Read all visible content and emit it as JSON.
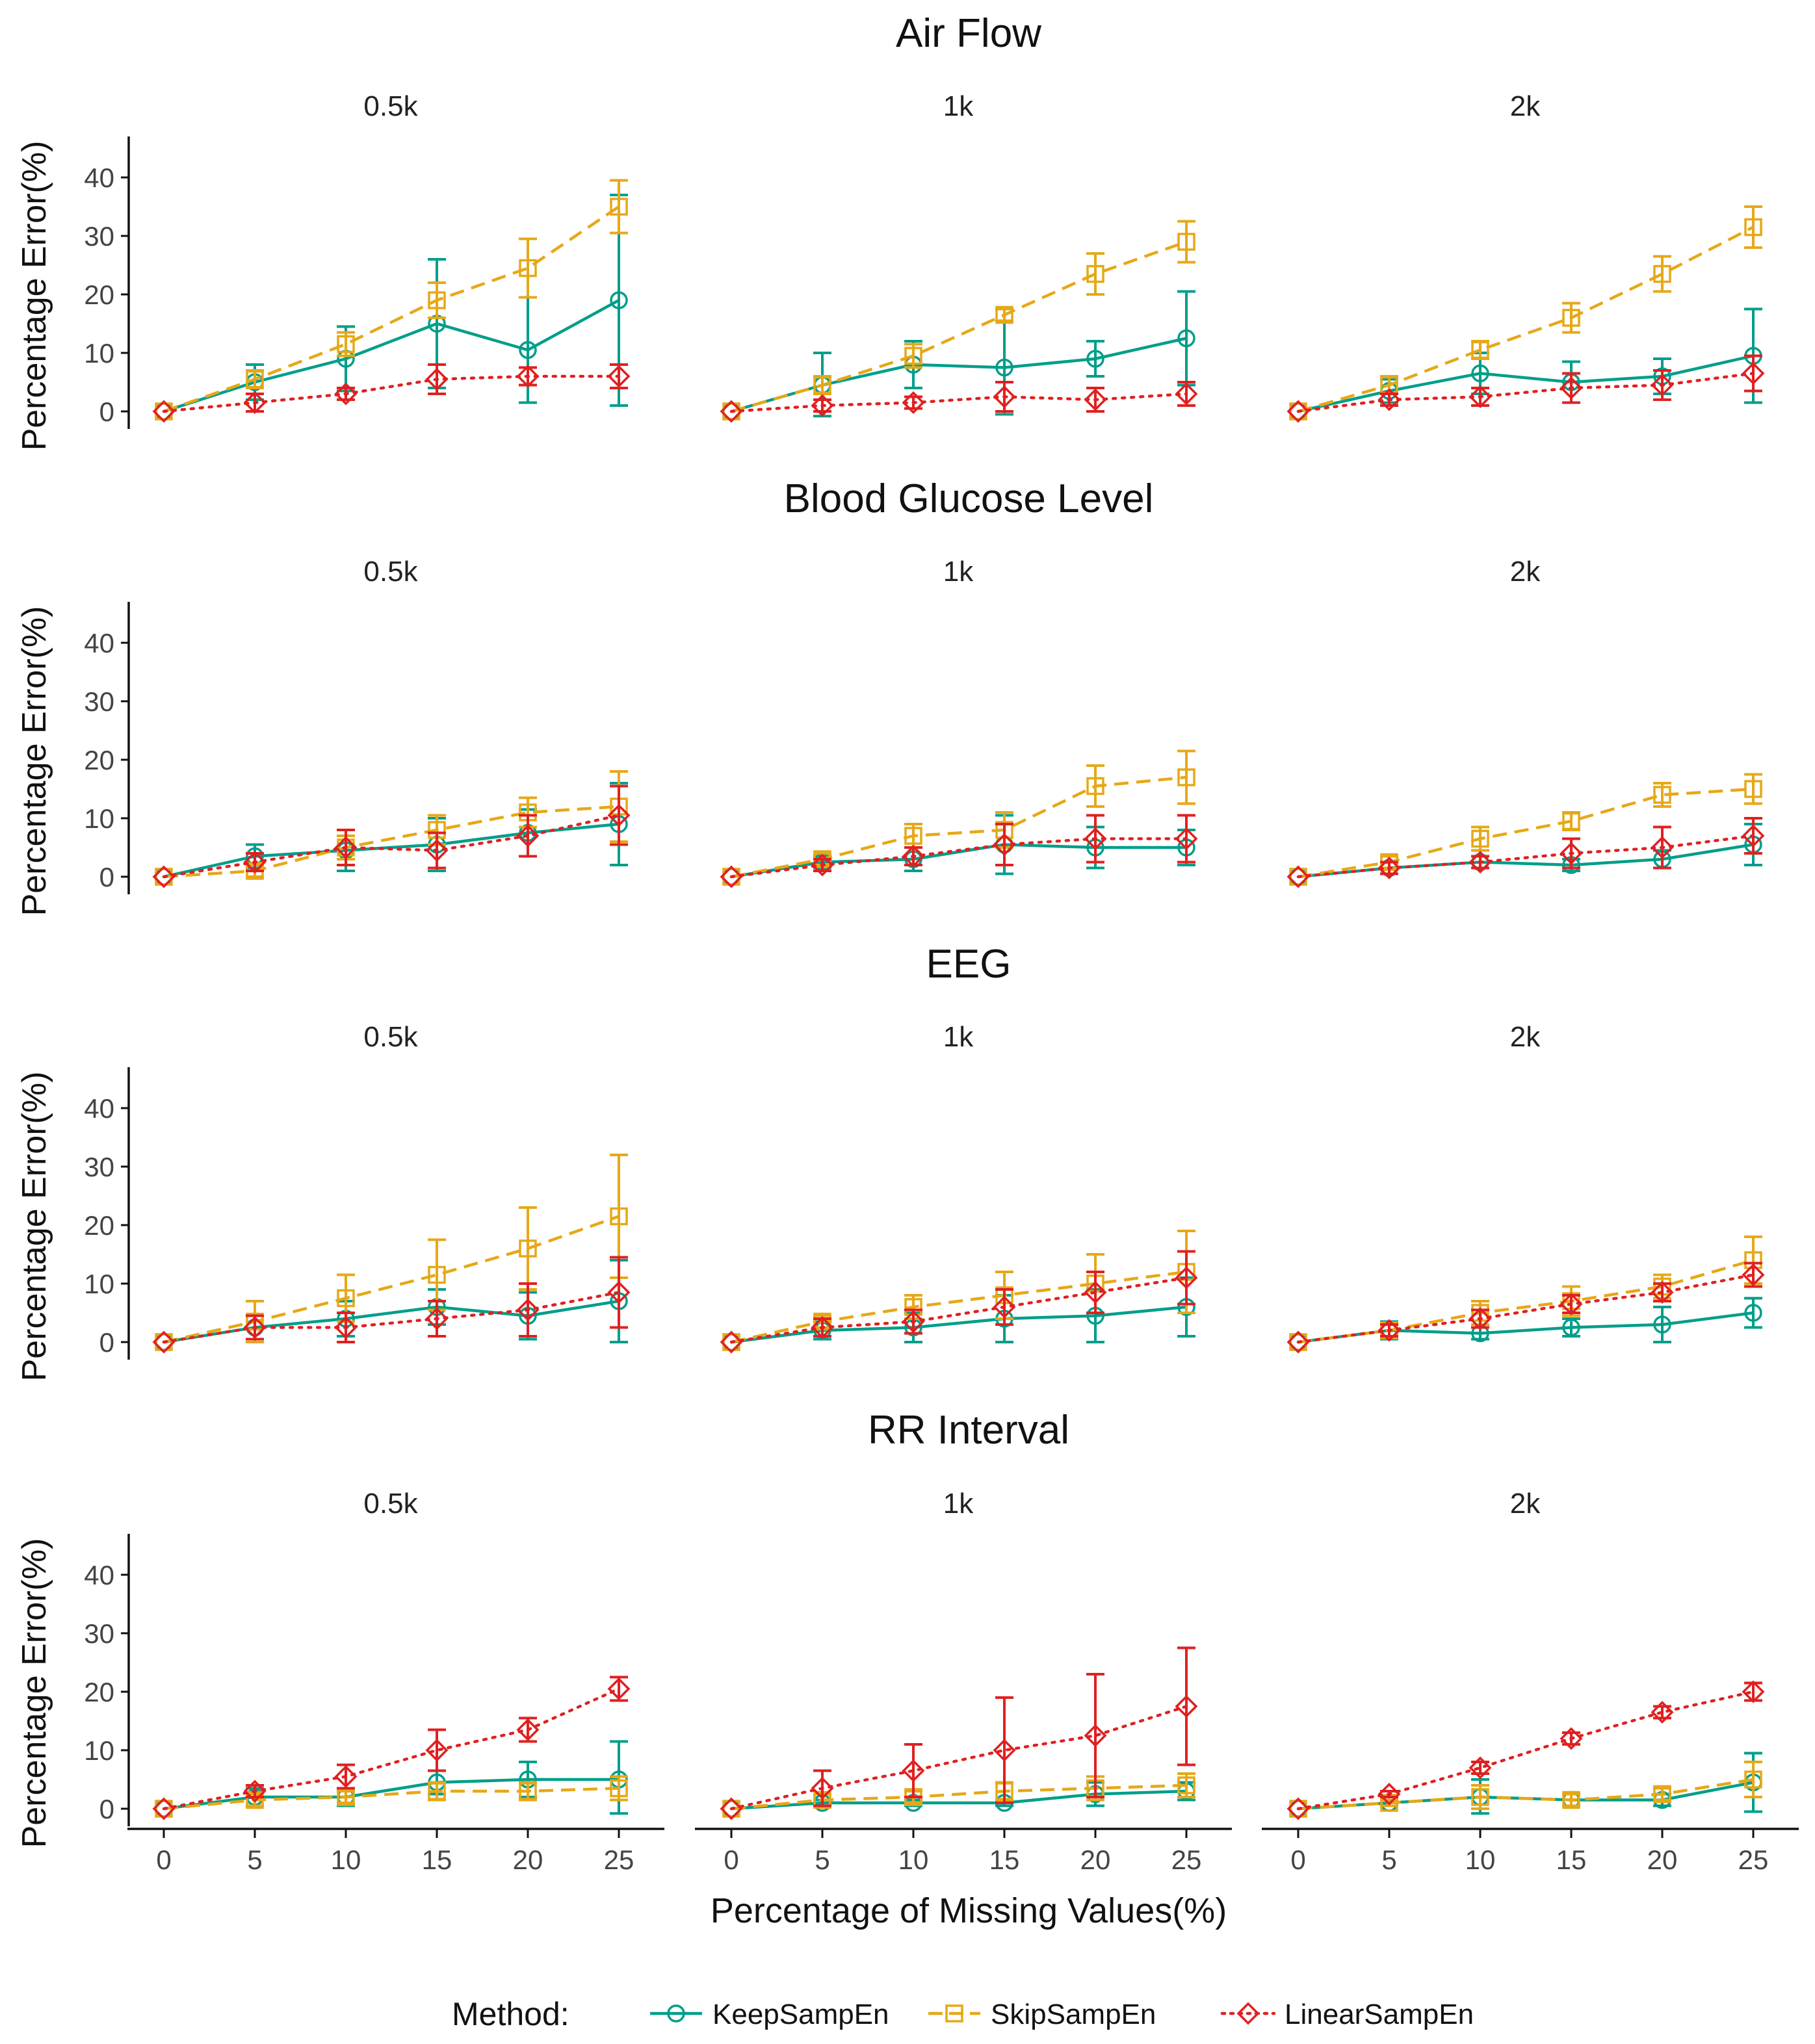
{
  "figure": {
    "x_axis_label": "Percentage of Missing Values(%)",
    "y_axis_label": "Percentage Error(%)",
    "legend_title": "Method:",
    "methods": [
      {
        "name": "KeepSampEn",
        "color": "#009E8A",
        "marker": "circle",
        "dash": "solid"
      },
      {
        "name": "SkipSampEn",
        "color": "#E6A817",
        "marker": "square",
        "dash": "dashed"
      },
      {
        "name": "LinearSampEn",
        "color": "#E02020",
        "marker": "diamond",
        "dash": "dotted"
      }
    ]
  },
  "chart_data": [
    {
      "type": "line",
      "title": "Air Flow",
      "x": [
        0,
        5,
        10,
        15,
        20,
        25
      ],
      "ylim": [
        -3,
        47
      ],
      "yticks": [
        0,
        10,
        20,
        30,
        40
      ],
      "panels": [
        {
          "label": "0.5k",
          "series": [
            {
              "name": "KeepSampEn",
              "values": [
                0,
                5,
                9,
                15,
                10.5,
                19
              ],
              "err": [
                0,
                3,
                5.5,
                11,
                9,
                18
              ]
            },
            {
              "name": "SkipSampEn",
              "values": [
                0,
                5.5,
                11.5,
                19,
                24.5,
                35
              ],
              "err": [
                0,
                1.5,
                2,
                3,
                5,
                4.5
              ]
            },
            {
              "name": "LinearSampEn",
              "values": [
                0,
                1.5,
                3,
                5.5,
                6,
                6
              ],
              "err": [
                0,
                1.5,
                1,
                2.5,
                1.5,
                2
              ]
            }
          ]
        },
        {
          "label": "1k",
          "series": [
            {
              "name": "KeepSampEn",
              "values": [
                0,
                4.5,
                8,
                7.5,
                9,
                12.5
              ],
              "err": [
                0,
                5.5,
                4,
                8,
                3,
                8
              ]
            },
            {
              "name": "SkipSampEn",
              "values": [
                0,
                4.5,
                9.5,
                16.5,
                23.5,
                29
              ],
              "err": [
                0,
                1.5,
                2,
                1,
                3.5,
                3.5
              ]
            },
            {
              "name": "LinearSampEn",
              "values": [
                0,
                1,
                1.5,
                2.5,
                2,
                3
              ],
              "err": [
                0,
                1,
                1,
                2.5,
                2,
                2
              ]
            }
          ]
        },
        {
          "label": "2k",
          "series": [
            {
              "name": "KeepSampEn",
              "values": [
                0,
                3.5,
                6.5,
                5,
                6,
                9.5
              ],
              "err": [
                0,
                2,
                3.5,
                3.5,
                3,
                8
              ]
            },
            {
              "name": "SkipSampEn",
              "values": [
                0,
                4.5,
                10.5,
                16,
                23.5,
                31.5
              ],
              "err": [
                0,
                1.5,
                1.5,
                2.5,
                3,
                3.5
              ]
            },
            {
              "name": "LinearSampEn",
              "values": [
                0,
                2,
                2.5,
                4,
                4.5,
                6.5
              ],
              "err": [
                0,
                1,
                1.5,
                2.5,
                2.5,
                3
              ]
            }
          ]
        }
      ]
    },
    {
      "type": "line",
      "title": "Blood Glucose Level",
      "x": [
        0,
        5,
        10,
        15,
        20,
        25
      ],
      "ylim": [
        -3,
        47
      ],
      "yticks": [
        0,
        10,
        20,
        30,
        40
      ],
      "panels": [
        {
          "label": "0.5k",
          "series": [
            {
              "name": "KeepSampEn",
              "values": [
                0,
                3.5,
                4.5,
                5.5,
                7.5,
                9
              ],
              "err": [
                0,
                2,
                3.5,
                4.5,
                4,
                7
              ]
            },
            {
              "name": "SkipSampEn",
              "values": [
                0,
                1,
                5,
                8,
                11,
                12
              ],
              "err": [
                0,
                1,
                2,
                2.5,
                2.5,
                6
              ]
            },
            {
              "name": "LinearSampEn",
              "values": [
                0,
                2.5,
                5,
                4.5,
                7,
                10.5
              ],
              "err": [
                0,
                1.5,
                3,
                3,
                3.5,
                5
              ]
            }
          ]
        },
        {
          "label": "1k",
          "series": [
            {
              "name": "KeepSampEn",
              "values": [
                0,
                2.5,
                3,
                5.5,
                5,
                5
              ],
              "err": [
                0,
                1,
                2,
                5,
                3.5,
                3
              ]
            },
            {
              "name": "SkipSampEn",
              "values": [
                0,
                3,
                7,
                8,
                15.5,
                17
              ],
              "err": [
                0,
                1,
                2,
                3,
                3.5,
                4.5
              ]
            },
            {
              "name": "LinearSampEn",
              "values": [
                0,
                2,
                3.5,
                5.5,
                6.5,
                6.5
              ],
              "err": [
                0,
                1,
                1.5,
                3.5,
                4,
                4
              ]
            }
          ]
        },
        {
          "label": "2k",
          "series": [
            {
              "name": "KeepSampEn",
              "values": [
                0,
                1.5,
                2.5,
                2,
                3,
                5.5
              ],
              "err": [
                0,
                1,
                1,
                1,
                1.5,
                3.5
              ]
            },
            {
              "name": "SkipSampEn",
              "values": [
                0,
                2.5,
                6.5,
                9.5,
                14,
                15
              ],
              "err": [
                0,
                1,
                2,
                1.5,
                2,
                2.5
              ]
            },
            {
              "name": "LinearSampEn",
              "values": [
                0,
                1.5,
                2.5,
                4,
                5,
                7
              ],
              "err": [
                0,
                1,
                1,
                2.5,
                3.5,
                3
              ]
            }
          ]
        }
      ]
    },
    {
      "type": "line",
      "title": "EEG",
      "x": [
        0,
        5,
        10,
        15,
        20,
        25
      ],
      "ylim": [
        -3,
        47
      ],
      "yticks": [
        0,
        10,
        20,
        30,
        40
      ],
      "panels": [
        {
          "label": "0.5k",
          "series": [
            {
              "name": "KeepSampEn",
              "values": [
                0,
                2.5,
                4,
                6,
                4.5,
                7
              ],
              "err": [
                0,
                2,
                3,
                3,
                4,
                7
              ]
            },
            {
              "name": "SkipSampEn",
              "values": [
                0,
                3.5,
                7.5,
                11.5,
                16,
                21.5
              ],
              "err": [
                0,
                3.5,
                4,
                6,
                7,
                10.5
              ]
            },
            {
              "name": "LinearSampEn",
              "values": [
                0,
                2.5,
                2.5,
                4,
                5.5,
                8.5
              ],
              "err": [
                0,
                2,
                2.5,
                3,
                4.5,
                6
              ]
            }
          ]
        },
        {
          "label": "1k",
          "series": [
            {
              "name": "KeepSampEn",
              "values": [
                0,
                2,
                2.5,
                4,
                4.5,
                6
              ],
              "err": [
                0,
                1.5,
                2.5,
                4,
                4.5,
                5
              ]
            },
            {
              "name": "SkipSampEn",
              "values": [
                0,
                3.5,
                6,
                8,
                10,
                12
              ],
              "err": [
                0,
                1,
                2,
                4,
                5,
                7
              ]
            },
            {
              "name": "LinearSampEn",
              "values": [
                0,
                2.5,
                3.5,
                6,
                8.5,
                11
              ],
              "err": [
                0,
                1.5,
                2,
                3,
                3.5,
                4.5
              ]
            }
          ]
        },
        {
          "label": "2k",
          "series": [
            {
              "name": "KeepSampEn",
              "values": [
                0,
                2,
                1.5,
                2.5,
                3,
                5
              ],
              "err": [
                0,
                1.5,
                1,
                1.5,
                3,
                2.5
              ]
            },
            {
              "name": "SkipSampEn",
              "values": [
                0,
                2,
                5,
                7,
                9.5,
                14
              ],
              "err": [
                0,
                1,
                2,
                2.5,
                2,
                4
              ]
            },
            {
              "name": "LinearSampEn",
              "values": [
                0,
                2,
                4,
                6.5,
                8.5,
                11.5
              ],
              "err": [
                0,
                1,
                1.5,
                1.5,
                1.5,
                2
              ]
            }
          ]
        }
      ]
    },
    {
      "type": "line",
      "title": "RR Interval",
      "x": [
        0,
        5,
        10,
        15,
        20,
        25
      ],
      "ylim": [
        -3,
        47
      ],
      "yticks": [
        0,
        10,
        20,
        30,
        40
      ],
      "panels": [
        {
          "label": "0.5k",
          "series": [
            {
              "name": "KeepSampEn",
              "values": [
                0,
                2,
                2,
                4.5,
                5,
                5
              ],
              "err": [
                0,
                1.5,
                1.5,
                2,
                3,
                6.5
              ]
            },
            {
              "name": "SkipSampEn",
              "values": [
                0,
                1.5,
                2,
                3,
                3,
                3.5
              ],
              "err": [
                0,
                1,
                1,
                1.5,
                1.5,
                2
              ]
            },
            {
              "name": "LinearSampEn",
              "values": [
                0,
                3,
                5.5,
                10,
                13.5,
                20.5
              ],
              "err": [
                0,
                1,
                2,
                3.5,
                2,
                2
              ]
            }
          ]
        },
        {
          "label": "1k",
          "series": [
            {
              "name": "KeepSampEn",
              "values": [
                0,
                1,
                1,
                1,
                2.5,
                3
              ],
              "err": [
                0,
                0.5,
                0.5,
                0.5,
                2,
                1.5
              ]
            },
            {
              "name": "SkipSampEn",
              "values": [
                0,
                1.5,
                2,
                3,
                3.5,
                4
              ],
              "err": [
                0,
                1,
                1,
                1.5,
                2,
                2
              ]
            },
            {
              "name": "LinearSampEn",
              "values": [
                0,
                3.5,
                6.5,
                10,
                12.5,
                17.5
              ],
              "err": [
                0,
                3,
                4.5,
                9,
                10.5,
                10
              ]
            }
          ]
        },
        {
          "label": "2k",
          "series": [
            {
              "name": "KeepSampEn",
              "values": [
                0,
                1,
                2,
                1.5,
                1.5,
                4.5
              ],
              "err": [
                0,
                0.5,
                3,
                1,
                1,
                5
              ]
            },
            {
              "name": "SkipSampEn",
              "values": [
                0,
                1,
                2,
                1.5,
                2.5,
                5
              ],
              "err": [
                0,
                0.5,
                2,
                1,
                1,
                3
              ]
            },
            {
              "name": "LinearSampEn",
              "values": [
                0,
                2.5,
                7,
                12,
                16.5,
                20
              ],
              "err": [
                0,
                0.5,
                1,
                1,
                1,
                1.5
              ]
            }
          ]
        }
      ]
    }
  ]
}
